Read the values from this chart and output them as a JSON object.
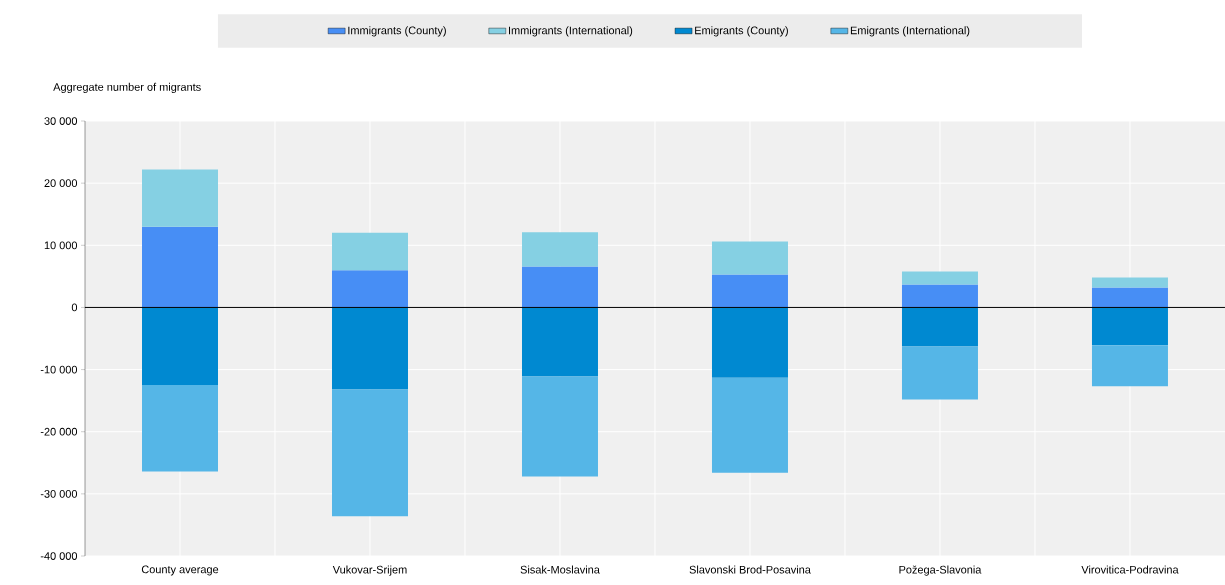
{
  "chart_data": {
    "type": "bar",
    "stacked": true,
    "ylabel": "Aggregate number of migrants",
    "categories": [
      "County average",
      "Vukovar-Srijem",
      "Sisak-Moslavina",
      "Slavonski Brod-Posavina",
      "Požega-Slavonia",
      "Virovitica-Podravina"
    ],
    "series": [
      {
        "name": "Immigrants (County)",
        "color": "#478ef5",
        "values": [
          13000,
          6000,
          6600,
          5300,
          3700,
          3200
        ]
      },
      {
        "name": "Immigrants (International)",
        "color": "#85d0e3",
        "values": [
          9200,
          6000,
          5500,
          5300,
          2100,
          1600
        ]
      },
      {
        "name": "Emigrants (County)",
        "color": "#0089d1",
        "values": [
          -12500,
          -13200,
          -11100,
          -11300,
          -6300,
          -6100
        ]
      },
      {
        "name": "Emigrants (International)",
        "color": "#55b6e7",
        "values": [
          -13900,
          -20400,
          -16100,
          -15300,
          -8500,
          -6600
        ]
      }
    ],
    "ylim": [
      -40000,
      30000
    ],
    "yticks": [
      {
        "value": -40000,
        "label": "-40 000"
      },
      {
        "value": -30000,
        "label": "-30 000"
      },
      {
        "value": -20000,
        "label": "-20 000"
      },
      {
        "value": -10000,
        "label": "-10 000"
      },
      0,
      {
        "value": 10000,
        "label": "10 000"
      },
      {
        "value": 20000,
        "label": "20 000"
      },
      {
        "value": 30000,
        "label": "30 000"
      }
    ],
    "grid": true,
    "legend": "top"
  }
}
